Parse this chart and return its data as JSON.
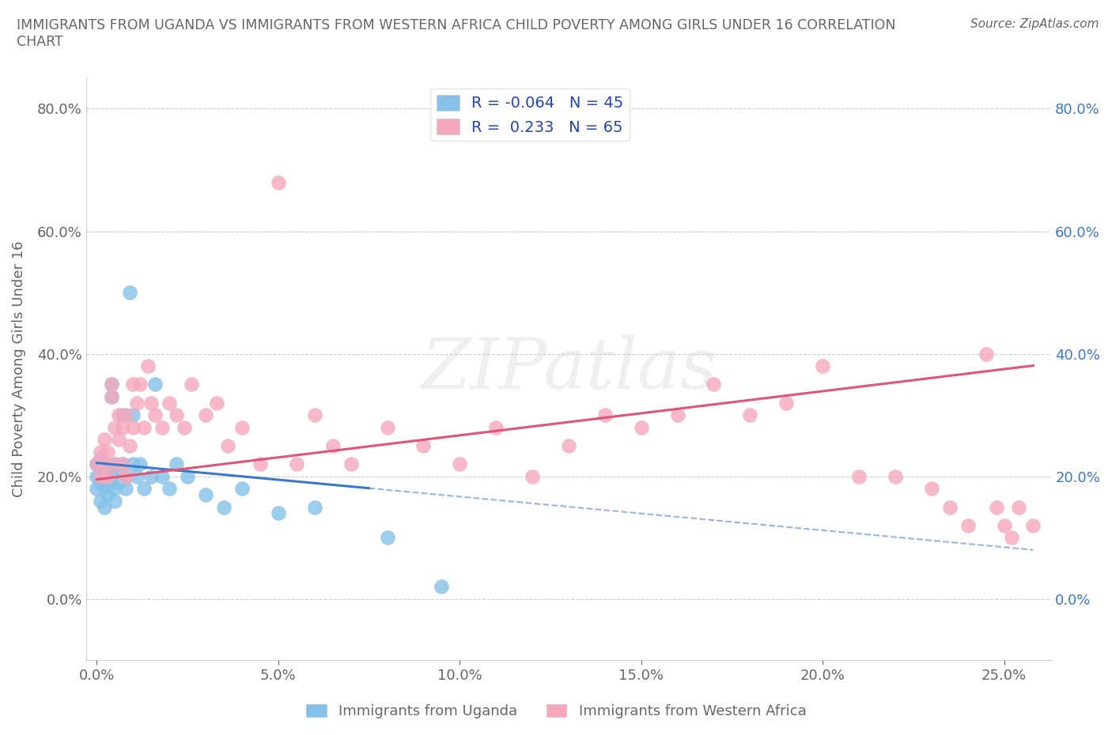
{
  "title": "IMMIGRANTS FROM UGANDA VS IMMIGRANTS FROM WESTERN AFRICA CHILD POVERTY AMONG GIRLS UNDER 16 CORRELATION\nCHART",
  "source": "Source: ZipAtlas.com",
  "ylabel": "Child Poverty Among Girls Under 16",
  "watermark": "ZIPatlas",
  "legend1_label": "R = -0.064   N = 45",
  "legend2_label": "R =  0.233   N = 65",
  "uganda_color": "#85c1e8",
  "western_africa_color": "#f5a8bc",
  "trend_uganda_color": "#3a78c9",
  "trend_western_africa_color": "#e05575",
  "background_color": "#ffffff",
  "xlim": [
    -0.003,
    0.263
  ],
  "ylim": [
    -0.1,
    0.85
  ],
  "x_ticks": [
    0.0,
    0.05,
    0.1,
    0.15,
    0.2,
    0.25
  ],
  "x_tick_labels": [
    "0.0%",
    "5.0%",
    "10.0%",
    "15.0%",
    "20.0%",
    "25.0%"
  ],
  "y_ticks": [
    0.0,
    0.2,
    0.4,
    0.6,
    0.8
  ],
  "y_tick_labels": [
    "0.0%",
    "20.0%",
    "40.0%",
    "60.0%",
    "80.0%"
  ],
  "legend_label_uganda": "Immigrants from Uganda",
  "legend_label_western": "Immigrants from Western Africa",
  "title_color": "#666666",
  "axis_color": "#666666",
  "grid_color": "#cccccc",
  "r_label_color": "#2244bb",
  "right_tick_color": "#3a78c9",
  "uganda_x": [
    0.0,
    0.0,
    0.0,
    0.001,
    0.001,
    0.001,
    0.001,
    0.002,
    0.002,
    0.002,
    0.002,
    0.003,
    0.003,
    0.003,
    0.004,
    0.004,
    0.004,
    0.005,
    0.005,
    0.005,
    0.006,
    0.006,
    0.007,
    0.007,
    0.008,
    0.008,
    0.009,
    0.01,
    0.01,
    0.011,
    0.012,
    0.013,
    0.015,
    0.016,
    0.018,
    0.02,
    0.022,
    0.025,
    0.03,
    0.035,
    0.04,
    0.05,
    0.06,
    0.08,
    0.095
  ],
  "uganda_y": [
    0.2,
    0.22,
    0.18,
    0.21,
    0.19,
    0.23,
    0.16,
    0.2,
    0.22,
    0.18,
    0.15,
    0.21,
    0.19,
    0.17,
    0.33,
    0.35,
    0.2,
    0.22,
    0.18,
    0.16,
    0.21,
    0.19,
    0.3,
    0.22,
    0.2,
    0.18,
    0.5,
    0.3,
    0.22,
    0.2,
    0.22,
    0.18,
    0.2,
    0.35,
    0.2,
    0.18,
    0.22,
    0.2,
    0.17,
    0.15,
    0.18,
    0.14,
    0.15,
    0.1,
    0.02
  ],
  "western_x": [
    0.0,
    0.001,
    0.001,
    0.002,
    0.002,
    0.003,
    0.003,
    0.004,
    0.004,
    0.005,
    0.005,
    0.006,
    0.006,
    0.007,
    0.007,
    0.008,
    0.008,
    0.009,
    0.01,
    0.01,
    0.011,
    0.012,
    0.013,
    0.014,
    0.015,
    0.016,
    0.018,
    0.02,
    0.022,
    0.024,
    0.026,
    0.03,
    0.033,
    0.036,
    0.04,
    0.045,
    0.05,
    0.055,
    0.06,
    0.065,
    0.07,
    0.08,
    0.09,
    0.1,
    0.11,
    0.12,
    0.13,
    0.14,
    0.15,
    0.16,
    0.17,
    0.18,
    0.19,
    0.2,
    0.21,
    0.22,
    0.23,
    0.235,
    0.24,
    0.245,
    0.248,
    0.25,
    0.252,
    0.254,
    0.258
  ],
  "western_y": [
    0.22,
    0.2,
    0.24,
    0.22,
    0.26,
    0.2,
    0.24,
    0.33,
    0.35,
    0.22,
    0.28,
    0.26,
    0.3,
    0.22,
    0.28,
    0.2,
    0.3,
    0.25,
    0.28,
    0.35,
    0.32,
    0.35,
    0.28,
    0.38,
    0.32,
    0.3,
    0.28,
    0.32,
    0.3,
    0.28,
    0.35,
    0.3,
    0.32,
    0.25,
    0.28,
    0.22,
    0.68,
    0.22,
    0.3,
    0.25,
    0.22,
    0.28,
    0.25,
    0.22,
    0.28,
    0.2,
    0.25,
    0.3,
    0.28,
    0.3,
    0.35,
    0.3,
    0.32,
    0.38,
    0.2,
    0.2,
    0.18,
    0.15,
    0.12,
    0.4,
    0.15,
    0.12,
    0.1,
    0.15,
    0.12
  ],
  "uganda_trend_x0": 0.0,
  "uganda_trend_x_solid_end": 0.075,
  "uganda_trend_x_dash_end": 0.258,
  "uganda_trend_y0": 0.222,
  "uganda_trend_slope": -0.55,
  "western_trend_x0": 0.0,
  "western_trend_x_end": 0.258,
  "western_trend_y0": 0.195,
  "western_trend_slope": 0.72
}
